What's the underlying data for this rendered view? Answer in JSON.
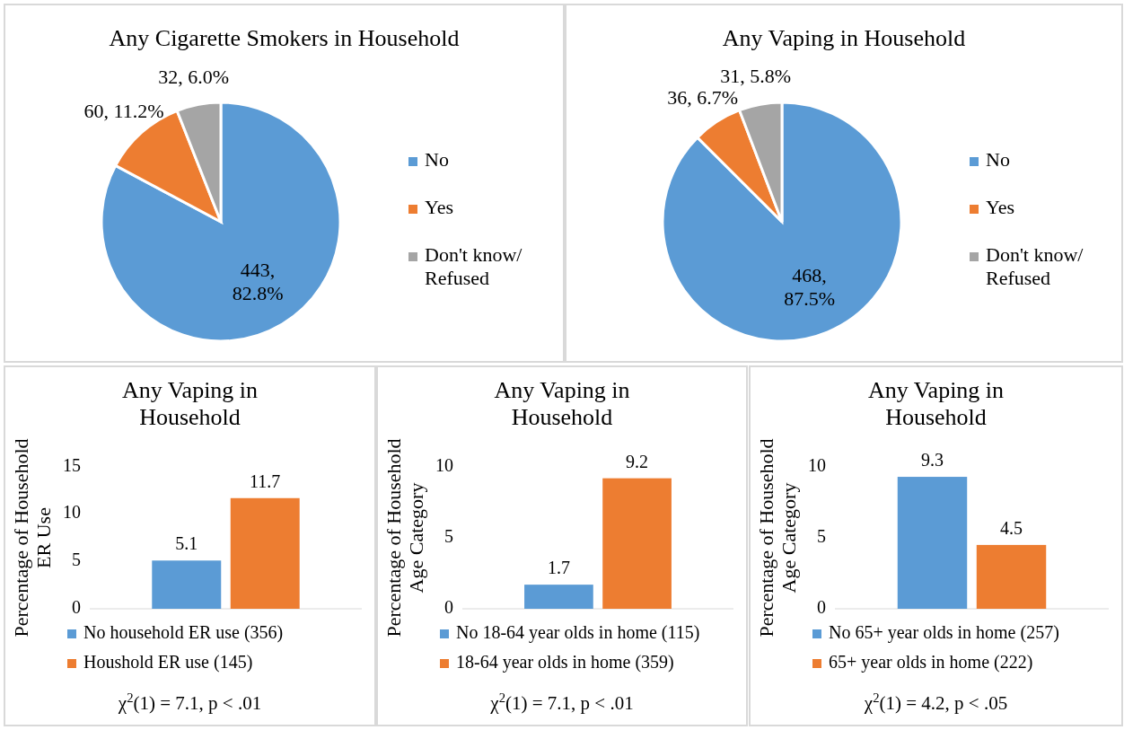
{
  "chart_data": [
    {
      "type": "pie",
      "title": "Any Cigarette Smokers in Household",
      "categories": [
        "No",
        "Yes",
        "Don't know/Refused"
      ],
      "values": [
        443,
        60,
        32
      ],
      "value_labels": [
        "443, 82.8%",
        "60, 11.2%",
        "32, 6.0%"
      ],
      "colors": [
        "#5b9bd5",
        "#ed7d31",
        "#a5a5a5"
      ],
      "legend": "right"
    },
    {
      "type": "pie",
      "title": "Any Vaping in Household",
      "categories": [
        "No",
        "Yes",
        "Don't know/Refused"
      ],
      "values": [
        468,
        36,
        31
      ],
      "value_labels": [
        "468, 87.5%",
        "36, 6.7%",
        "31, 5.8%"
      ],
      "colors": [
        "#5b9bd5",
        "#ed7d31",
        "#a5a5a5"
      ],
      "legend": "right"
    },
    {
      "type": "bar",
      "title": "Any Vaping in Household",
      "ylabel": "Percentage of Household ER Use",
      "categories": [
        null
      ],
      "series": [
        {
          "name": "No household ER use (356)",
          "color": "#5b9bd5",
          "values": [
            5.1
          ]
        },
        {
          "name": "Houshold ER use (145)",
          "color": "#ed7d31",
          "values": [
            11.7
          ]
        }
      ],
      "ylim": [
        0,
        15
      ],
      "yticks": [
        0,
        5,
        10,
        15
      ],
      "data_labels": true,
      "legend": "bottom",
      "annotations": [
        "χ$^{2}$(1) = 7.1, p < .01"
      ]
    },
    {
      "type": "bar",
      "title": "Any Vaping in Household",
      "ylabel": "Percentage of Household Age Category",
      "categories": [
        null
      ],
      "series": [
        {
          "name": "No 18-64 year olds in home (115)",
          "color": "#5b9bd5",
          "values": [
            1.7
          ]
        },
        {
          "name": "18-64 year olds in home (359)",
          "color": "#ed7d31",
          "values": [
            9.2
          ]
        }
      ],
      "ylim": [
        0,
        10
      ],
      "yticks": [
        0,
        5,
        10
      ],
      "data_labels": true,
      "legend": "bottom",
      "annotations": [
        "χ$^{2}$(1) = 7.1, p < .01"
      ]
    },
    {
      "type": "bar",
      "title": "Any Vaping in Household",
      "ylabel": "Percentage of Household Age Category",
      "categories": [
        null
      ],
      "series": [
        {
          "name": "No 65+ year olds in home (257)",
          "color": "#5b9bd5",
          "values": [
            9.3
          ]
        },
        {
          "name": "65+ year olds in home (222)",
          "color": "#ed7d31",
          "values": [
            4.5
          ]
        }
      ],
      "ylim": [
        0,
        10
      ],
      "yticks": [
        0,
        5,
        10
      ],
      "data_labels": true,
      "legend": "bottom",
      "annotations": [
        "χ$^{2}$(1) = 4.2, p < .05"
      ]
    }
  ]
}
